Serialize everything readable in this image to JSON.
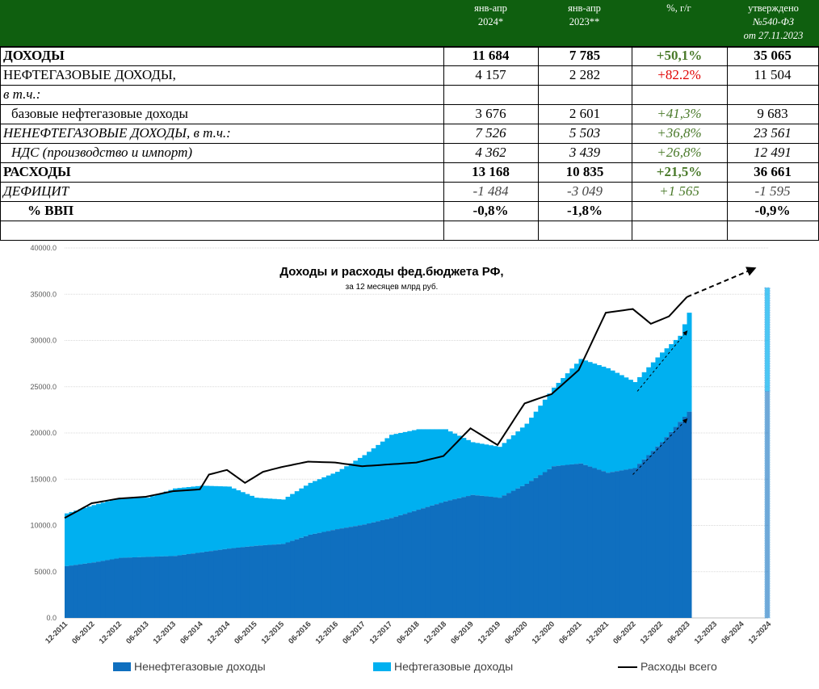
{
  "table": {
    "headers": {
      "col1": [
        "янв-апр",
        "2024*"
      ],
      "col2": [
        "янв-апр",
        "2023**"
      ],
      "col3": [
        "%, г/г"
      ],
      "col4": [
        "утверждено",
        "№540-ФЗ",
        "от 27.11.2023"
      ]
    },
    "rows": [
      {
        "label": "ДОХОДЫ",
        "v1": "11 684",
        "v2": "7 785",
        "v3": "+50,1%",
        "v4": "35 065"
      },
      {
        "label": "НЕФТЕГАЗОВЫЕ ДОХОДЫ,",
        "v1": "4 157",
        "v2": "2 282",
        "v3": "+82.2%",
        "v4": "11 504"
      },
      {
        "label": "в т.ч.:",
        "v1": "",
        "v2": "",
        "v3": "",
        "v4": ""
      },
      {
        "label": "базовые нефтегазовые доходы",
        "v1": "3 676",
        "v2": "2 601",
        "v3": "+41,3%",
        "v4": "9 683"
      },
      {
        "label": "НЕНЕФТЕГАЗОВЫЕ ДОХОДЫ, в т.ч.:",
        "v1": "7 526",
        "v2": "5 503",
        "v3": "+36,8%",
        "v4": "23 561"
      },
      {
        "label": "НДС (производство и импорт)",
        "v1": "4 362",
        "v2": "3 439",
        "v3": "+26,8%",
        "v4": "12 491"
      },
      {
        "label": "РАСХОДЫ",
        "v1": "13 168",
        "v2": "10 835",
        "v3": "+21,5%",
        "v4": "36 661"
      },
      {
        "label": "ДЕФИЦИТ",
        "v1": "-1 484",
        "v2": "-3 049",
        "v3": "+1 565",
        "v4": "-1 595"
      },
      {
        "label": "% ВВП",
        "v1": "-0,8%",
        "v2": "-1,8%",
        "v3": "",
        "v4": "-0,9%"
      },
      {
        "label": "",
        "v1": "",
        "v2": "",
        "v3": "",
        "v4": ""
      }
    ]
  },
  "chart_data": {
    "type": "bar",
    "title": "Доходы и расходы фед.бюджета РФ,",
    "subtitle": "за 12 месяцев млрд руб.",
    "ylim": [
      0,
      40000
    ],
    "yticks": [
      "0.0",
      "5000.0",
      "10000.0",
      "15000.0",
      "20000.0",
      "25000.0",
      "30000.0",
      "35000.0",
      "40000.0"
    ],
    "xticks": [
      "12-2011",
      "06-2012",
      "12-2012",
      "06-2013",
      "12-2013",
      "06-2014",
      "12-2014",
      "06-2015",
      "12-2015",
      "06-2016",
      "12-2016",
      "06-2017",
      "12-2017",
      "06-2018",
      "12-2018",
      "06-2019",
      "12-2019",
      "06-2020",
      "12-2020",
      "06-2021",
      "12-2021",
      "06-2022",
      "12-2022",
      "06-2023",
      "12-2023",
      "06-2024",
      "12-2024"
    ],
    "grid": true,
    "legend_position": "bottom",
    "series": [
      {
        "name": "Ненефтегазовые доходы",
        "color": "#0f6fbf",
        "points": [
          [
            0,
            5600
          ],
          [
            6,
            6000
          ],
          [
            12,
            6500
          ],
          [
            18,
            6600
          ],
          [
            24,
            6700
          ],
          [
            30,
            7100
          ],
          [
            36,
            7500
          ],
          [
            42,
            7800
          ],
          [
            48,
            8000
          ],
          [
            54,
            9000
          ],
          [
            60,
            9600
          ],
          [
            66,
            10100
          ],
          [
            72,
            10800
          ],
          [
            78,
            11700
          ],
          [
            84,
            12600
          ],
          [
            90,
            13300
          ],
          [
            96,
            13000
          ],
          [
            102,
            14500
          ],
          [
            108,
            16400
          ],
          [
            114,
            16700
          ],
          [
            120,
            15700
          ],
          [
            126,
            16200
          ],
          [
            132,
            19000
          ],
          [
            138,
            22300
          ]
        ]
      },
      {
        "name": "Нефтегазовые доходы",
        "color": "#00b0f0",
        "points": [
          [
            0,
            11300
          ],
          [
            6,
            12200
          ],
          [
            12,
            13000
          ],
          [
            18,
            13000
          ],
          [
            24,
            14000
          ],
          [
            30,
            14300
          ],
          [
            36,
            14200
          ],
          [
            42,
            13000
          ],
          [
            48,
            12800
          ],
          [
            54,
            14600
          ],
          [
            60,
            15800
          ],
          [
            66,
            17600
          ],
          [
            72,
            19800
          ],
          [
            78,
            20400
          ],
          [
            84,
            20400
          ],
          [
            90,
            19000
          ],
          [
            96,
            18500
          ],
          [
            102,
            21000
          ],
          [
            108,
            24900
          ],
          [
            114,
            28000
          ],
          [
            120,
            27000
          ],
          [
            126,
            25500
          ],
          [
            132,
            28700
          ],
          [
            136,
            30500
          ],
          [
            138,
            33000
          ]
        ]
      },
      {
        "name": "Расходы всего",
        "color": "#000000",
        "points": [
          [
            0,
            10800
          ],
          [
            6,
            12400
          ],
          [
            12,
            12900
          ],
          [
            18,
            13100
          ],
          [
            24,
            13700
          ],
          [
            30,
            13900
          ],
          [
            32,
            15500
          ],
          [
            36,
            16000
          ],
          [
            40,
            14600
          ],
          [
            44,
            15800
          ],
          [
            48,
            16300
          ],
          [
            54,
            16900
          ],
          [
            60,
            16800
          ],
          [
            66,
            16400
          ],
          [
            72,
            16600
          ],
          [
            78,
            16800
          ],
          [
            84,
            17500
          ],
          [
            90,
            20500
          ],
          [
            96,
            18700
          ],
          [
            102,
            23200
          ],
          [
            108,
            24200
          ],
          [
            114,
            26800
          ],
          [
            120,
            33000
          ],
          [
            126,
            33400
          ],
          [
            130,
            31800
          ],
          [
            134,
            32600
          ],
          [
            138,
            34700
          ]
        ]
      }
    ],
    "projection_bar": {
      "x": 156,
      "non_oil": 24500,
      "total": 35700
    },
    "trend_arrows": [
      {
        "from": [
          126,
          15500
        ],
        "to": [
          138,
          21500
        ]
      },
      {
        "from": [
          127,
          24500
        ],
        "to": [
          138,
          31000
        ]
      },
      {
        "from": [
          138,
          34700
        ],
        "to": [
          153,
          37800
        ]
      }
    ]
  }
}
